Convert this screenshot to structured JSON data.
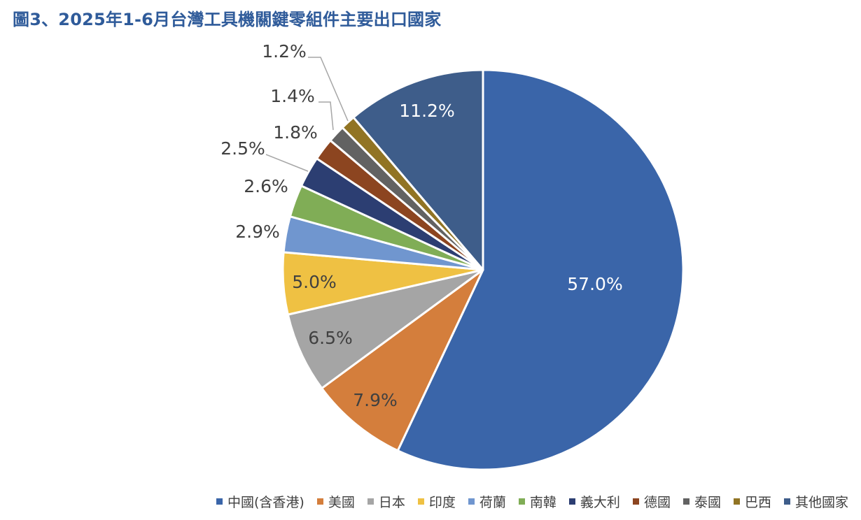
{
  "chart_data": {
    "type": "pie",
    "title": "圖3、2025年1-6月台灣工具機關鍵零組件主要出口國家",
    "legend_position": "bottom",
    "slices": [
      {
        "label": "中國(含香港)",
        "value": 57.0,
        "display": "57.0%",
        "color": "#3a65a9",
        "label_color": "#ffffff"
      },
      {
        "label": "美國",
        "value": 7.9,
        "display": "7.9%",
        "color": "#d47e3c",
        "label_color": "#404040"
      },
      {
        "label": "日本",
        "value": 6.5,
        "display": "6.5%",
        "color": "#a5a5a5",
        "label_color": "#404040"
      },
      {
        "label": "印度",
        "value": 5.0,
        "display": "5.0%",
        "color": "#efc143",
        "label_color": "#404040"
      },
      {
        "label": "荷蘭",
        "value": 2.9,
        "display": "2.9%",
        "color": "#7096cf",
        "label_color": "#404040"
      },
      {
        "label": "南韓",
        "value": 2.6,
        "display": "2.6%",
        "color": "#80ad56",
        "label_color": "#404040"
      },
      {
        "label": "義大利",
        "value": 2.5,
        "display": "2.5%",
        "color": "#2c3e72",
        "label_color": "#404040"
      },
      {
        "label": "德國",
        "value": 1.8,
        "display": "1.8%",
        "color": "#8c4520",
        "label_color": "#404040"
      },
      {
        "label": "泰國",
        "value": 1.4,
        "display": "1.4%",
        "color": "#626262",
        "label_color": "#404040"
      },
      {
        "label": "巴西",
        "value": 1.2,
        "display": "1.2%",
        "color": "#917424",
        "label_color": "#404040"
      },
      {
        "label": "其他國家",
        "value": 11.2,
        "display": "11.2%",
        "color": "#3e5d8a",
        "label_color": "#ffffff"
      }
    ]
  }
}
